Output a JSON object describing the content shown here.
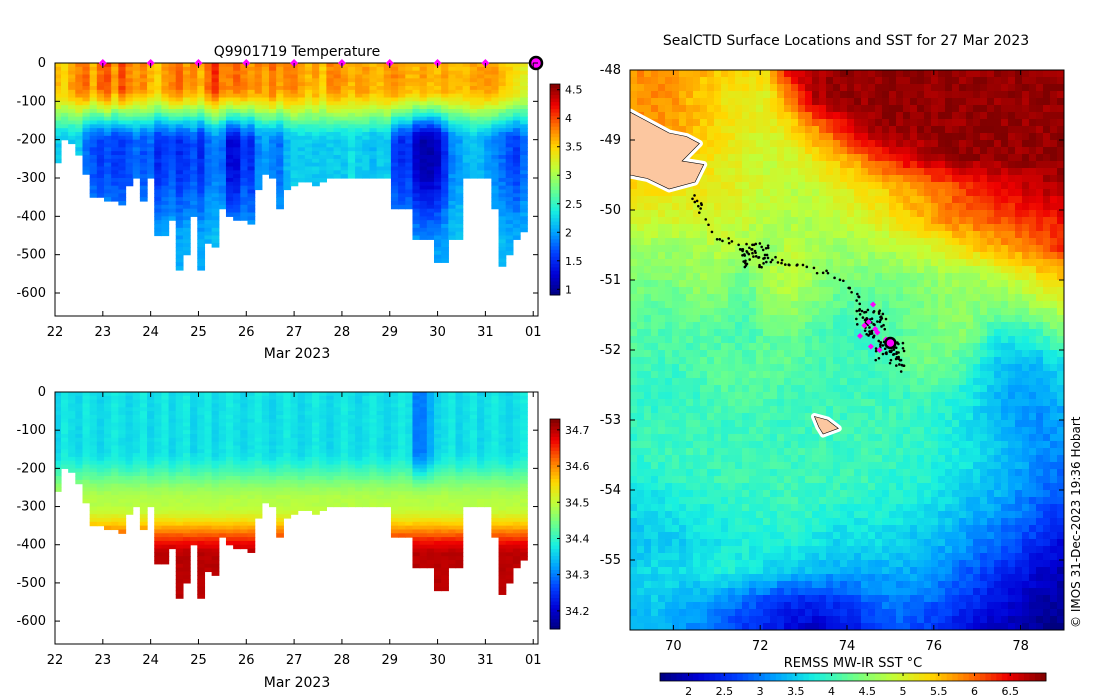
{
  "figure": {
    "credit": "© IMOS 31-Dec-2023 19:36 Hobart"
  },
  "chart_data": [
    {
      "type": "heatmap",
      "title": "Q9901719  Temperature",
      "xlabel": "Mar 2023",
      "ylabel": "",
      "x_ticks": [
        "22",
        "23",
        "24",
        "25",
        "26",
        "27",
        "28",
        "29",
        "30",
        "31",
        "01"
      ],
      "y_ticks": [
        0,
        -100,
        -200,
        -300,
        -400,
        -500,
        -600
      ],
      "xlim": [
        22,
        32.1
      ],
      "ylim": [
        -660,
        0
      ],
      "colorbar": {
        "ticks": [
          "1",
          "1.5",
          "2",
          "2.5",
          "3",
          "3.5",
          "4",
          "4.5"
        ],
        "range": [
          0.9,
          4.6
        ],
        "colors": [
          "#00007f",
          "#0000d6",
          "#0040ff",
          "#00a4ff",
          "#18f0e0",
          "#6bff8c",
          "#c0ff39",
          "#ffd800",
          "#ff7400",
          "#ef0000",
          "#7f0000"
        ]
      },
      "surfacing_markers_day": [
        23,
        24,
        25,
        26,
        27,
        28,
        29,
        30,
        31
      ],
      "profile_days": [
        22.05,
        22.2,
        22.35,
        22.5,
        22.65,
        22.8,
        22.95,
        23.1,
        23.25,
        23.4,
        23.55,
        23.7,
        23.85,
        24.0,
        24.15,
        24.3,
        24.45,
        24.6,
        24.75,
        24.9,
        25.05,
        25.2,
        25.35,
        25.5,
        25.65,
        25.8,
        25.95,
        26.1,
        26.25,
        26.4,
        26.55,
        26.7,
        26.85,
        27.0,
        27.15,
        27.3,
        27.45,
        27.6,
        27.75,
        27.9,
        28.05,
        28.2,
        28.35,
        28.5,
        28.65,
        28.8,
        28.95,
        29.1,
        29.25,
        29.4,
        29.55,
        29.7,
        29.85,
        30.0,
        30.15,
        30.3,
        30.45,
        30.6,
        30.75,
        30.9,
        31.05,
        31.2,
        31.35,
        31.5,
        31.65,
        31.8,
        31.95
      ],
      "profile_max_depth_m": [
        260,
        200,
        210,
        240,
        290,
        350,
        350,
        355,
        355,
        370,
        320,
        300,
        360,
        300,
        445,
        445,
        410,
        540,
        495,
        400,
        535,
        470,
        475,
        380,
        400,
        410,
        410,
        420,
        330,
        290,
        300,
        380,
        330,
        320,
        310,
        310,
        320,
        310,
        300,
        300,
        300,
        300,
        300,
        300,
        300,
        300,
        300,
        380,
        380,
        380,
        460,
        460,
        460,
        515,
        515,
        460,
        460,
        300,
        300,
        300,
        300,
        380,
        530,
        500,
        460,
        440,
        0
      ],
      "surface_temp_C": [
        3.6,
        3.5,
        3.7,
        3.8,
        3.9,
        3.6,
        3.9,
        4.0,
        3.7,
        4.0,
        3.8,
        3.7,
        3.8,
        3.6,
        3.5,
        3.7,
        3.8,
        3.9,
        3.7,
        3.8,
        3.6,
        3.9,
        4.1,
        3.8,
        3.8,
        3.9,
        3.8,
        3.7,
        3.8,
        3.7,
        3.9,
        3.7,
        3.8,
        3.8,
        3.7,
        3.6,
        3.7,
        3.5,
        3.8,
        3.8,
        3.7,
        3.6,
        3.7,
        3.7,
        3.6,
        3.6,
        3.7,
        3.8,
        3.7,
        3.6,
        3.6,
        3.7,
        3.6,
        3.6,
        3.7,
        3.6,
        3.6,
        3.6,
        3.7,
        3.7,
        3.7,
        3.7,
        3.6,
        3.5,
        3.4,
        3.3,
        3.3
      ],
      "deep_temp_C": [
        2.2,
        2.2,
        2.2,
        2.2,
        1.8,
        1.7,
        1.6,
        1.7,
        1.6,
        1.6,
        1.7,
        1.8,
        1.7,
        1.8,
        1.5,
        1.6,
        1.7,
        1.5,
        1.6,
        1.7,
        1.5,
        1.8,
        1.9,
        1.8,
        1.3,
        1.3,
        1.6,
        1.5,
        1.9,
        2.0,
        1.9,
        1.8,
        2.1,
        2.2,
        2.2,
        2.2,
        2.2,
        2.2,
        2.2,
        2.2,
        2.2,
        2.3,
        2.2,
        2.2,
        2.1,
        2.2,
        2.2,
        1.6,
        1.5,
        1.6,
        1.2,
        1.1,
        1.1,
        1.2,
        1.5,
        1.9,
        2.0,
        2.1,
        2.2,
        2.1,
        2.0,
        1.9,
        1.8,
        1.7,
        1.6,
        1.8,
        1.7
      ]
    },
    {
      "type": "heatmap",
      "title": "",
      "xlabel": "Mar 2023",
      "ylabel": "",
      "x_ticks": [
        "22",
        "23",
        "24",
        "25",
        "26",
        "27",
        "28",
        "29",
        "30",
        "31",
        "01"
      ],
      "y_ticks": [
        0,
        -100,
        -200,
        -300,
        -400,
        -500,
        -600
      ],
      "xlim": [
        22,
        32.1
      ],
      "ylim": [
        -660,
        0
      ],
      "colorbar": {
        "ticks": [
          "34.2",
          "34.3",
          "34.4",
          "34.5",
          "34.6",
          "34.7"
        ],
        "range": [
          34.15,
          34.73
        ],
        "colors": [
          "#00007f",
          "#0000d6",
          "#0040ff",
          "#00a4ff",
          "#18f0e0",
          "#6bff8c",
          "#c0ff39",
          "#ffd800",
          "#ff7400",
          "#ef0000",
          "#7f0000"
        ]
      },
      "profile_days_ref": "same as temperature panel",
      "surface_salinity_psu": [
        34.36,
        34.38,
        34.37,
        34.36,
        34.38,
        34.37,
        34.36,
        34.37,
        34.38,
        34.37,
        34.36,
        34.37,
        34.38,
        34.36,
        34.37,
        34.38,
        34.36,
        34.37,
        34.38,
        34.36,
        34.37,
        34.38,
        34.36,
        34.37,
        34.38,
        34.37,
        34.36,
        34.37,
        34.38,
        34.37,
        34.36,
        34.37,
        34.38,
        34.37,
        34.36,
        34.37,
        34.38,
        34.37,
        34.36,
        34.37,
        34.38,
        34.37,
        34.36,
        34.37,
        34.38,
        34.37,
        34.36,
        34.37,
        34.38,
        34.37,
        34.3,
        34.3,
        34.33,
        34.36,
        34.37,
        34.38,
        34.36,
        34.37,
        34.38,
        34.36,
        34.37,
        34.38,
        34.37,
        34.36,
        34.37,
        34.38,
        34.37
      ],
      "deep_salinity_psu": 34.7
    },
    {
      "type": "heatmap",
      "title": "SealCTD Surface Locations and SST for 27 Mar 2023",
      "xlabel": "",
      "ylabel": "",
      "x_ticks": [
        "70",
        "72",
        "74",
        "76",
        "78"
      ],
      "y_ticks": [
        "-48",
        "-49",
        "-50",
        "-51",
        "-52",
        "-53",
        "-54",
        "-55"
      ],
      "xlim": [
        69.0,
        79.0
      ],
      "ylim": [
        -56.0,
        -48.0
      ],
      "colorbar": {
        "label": "REMSS MW-IR SST °C",
        "ticks": [
          "2",
          "2.5",
          "3",
          "3.5",
          "4",
          "4.5",
          "5",
          "5.5",
          "6",
          "6.5"
        ],
        "range": [
          1.6,
          7.0
        ],
        "colors": [
          "#00007f",
          "#0000d6",
          "#0040ff",
          "#00a4ff",
          "#18f0e0",
          "#6bff8c",
          "#c0ff39",
          "#ffd800",
          "#ff7400",
          "#ef0000",
          "#7f0000"
        ]
      },
      "sst_field_C": [
        [
          5.8,
          5.8,
          5.7,
          5.6,
          5.4,
          5.3,
          5.3,
          6.6,
          6.8,
          6.9,
          6.9,
          6.9,
          6.9,
          6.9,
          6.9,
          6.9,
          6.9,
          6.9,
          6.9,
          6.9
        ],
        [
          5.7,
          5.8,
          5.7,
          5.5,
          5.3,
          5.2,
          5.1,
          5.8,
          6.7,
          6.9,
          6.9,
          6.9,
          6.9,
          6.9,
          6.9,
          6.9,
          6.9,
          6.9,
          6.9,
          6.9
        ],
        [
          5.9,
          5.8,
          5.7,
          5.5,
          5.3,
          5.1,
          5.0,
          5.3,
          5.7,
          6.2,
          6.7,
          6.9,
          6.9,
          6.9,
          6.9,
          6.9,
          6.9,
          6.9,
          6.9,
          6.9
        ],
        [
          5.6,
          5.5,
          5.5,
          5.4,
          5.2,
          5.0,
          4.9,
          5.0,
          5.2,
          5.5,
          5.8,
          6.2,
          6.5,
          6.7,
          6.9,
          6.9,
          6.9,
          6.9,
          6.9,
          6.9
        ],
        [
          5.3,
          5.3,
          5.2,
          5.2,
          5.1,
          5.0,
          4.9,
          4.8,
          4.9,
          5.1,
          5.2,
          5.4,
          5.6,
          5.8,
          6.0,
          6.3,
          6.4,
          6.6,
          6.7,
          6.8
        ],
        [
          5.0,
          5.0,
          5.0,
          5.0,
          5.0,
          4.9,
          4.8,
          4.7,
          4.7,
          4.8,
          5.0,
          5.2,
          5.4,
          5.6,
          5.9,
          6.0,
          6.1,
          6.2,
          6.3,
          6.4
        ],
        [
          4.6,
          4.6,
          4.6,
          4.7,
          4.8,
          4.7,
          4.5,
          4.8,
          4.7,
          4.6,
          4.7,
          4.7,
          4.8,
          5.0,
          5.2,
          5.4,
          5.6,
          5.8,
          6.0,
          6.3
        ],
        [
          4.4,
          4.4,
          4.5,
          4.6,
          4.5,
          4.3,
          4.7,
          4.9,
          4.6,
          4.4,
          4.4,
          4.4,
          4.5,
          4.5,
          4.6,
          4.7,
          4.8,
          5.0,
          5.3,
          5.5
        ],
        [
          4.3,
          4.2,
          4.2,
          4.4,
          4.4,
          4.1,
          4.5,
          4.6,
          4.4,
          4.2,
          4.1,
          4.2,
          4.3,
          4.4,
          4.5,
          4.5,
          4.4,
          4.5,
          4.7,
          4.9
        ],
        [
          4.2,
          4.1,
          4.1,
          4.1,
          4.1,
          4.0,
          4.2,
          4.3,
          4.1,
          4.0,
          4.0,
          4.1,
          4.2,
          4.3,
          4.5,
          4.4,
          3.8,
          3.8,
          4.0,
          4.3
        ],
        [
          4.1,
          4.0,
          4.0,
          4.1,
          4.2,
          4.2,
          4.2,
          4.2,
          4.1,
          4.0,
          4.0,
          4.0,
          4.2,
          4.4,
          4.3,
          3.9,
          3.5,
          3.3,
          3.4,
          3.7
        ],
        [
          4.0,
          3.9,
          3.9,
          4.0,
          4.1,
          4.1,
          4.1,
          4.0,
          4.0,
          4.0,
          4.0,
          4.0,
          4.0,
          4.0,
          3.9,
          3.7,
          3.4,
          3.2,
          3.2,
          3.4
        ],
        [
          4.0,
          4.0,
          4.0,
          4.0,
          4.0,
          4.0,
          4.0,
          4.0,
          4.0,
          4.0,
          4.0,
          4.0,
          4.0,
          3.9,
          3.8,
          3.6,
          3.4,
          3.2,
          3.1,
          3.2
        ],
        [
          3.9,
          4.0,
          4.0,
          4.0,
          4.0,
          4.0,
          4.0,
          4.0,
          4.0,
          4.0,
          4.0,
          4.0,
          3.9,
          3.9,
          3.8,
          3.7,
          3.5,
          3.3,
          3.1,
          3.0
        ],
        [
          3.8,
          3.8,
          3.9,
          3.9,
          4.0,
          4.0,
          4.0,
          4.0,
          4.0,
          4.0,
          4.0,
          3.9,
          3.9,
          3.8,
          3.7,
          3.5,
          3.4,
          3.2,
          3.0,
          2.8
        ],
        [
          3.6,
          3.6,
          3.7,
          3.8,
          3.8,
          3.9,
          3.9,
          4.0,
          3.9,
          3.8,
          3.8,
          3.8,
          3.7,
          3.6,
          3.5,
          3.3,
          3.2,
          3.0,
          2.8,
          2.6
        ],
        [
          3.4,
          3.5,
          3.5,
          3.6,
          3.7,
          3.8,
          3.8,
          3.8,
          3.7,
          3.6,
          3.6,
          3.6,
          3.5,
          3.4,
          3.3,
          3.1,
          2.9,
          2.7,
          2.5,
          2.2
        ],
        [
          3.5,
          3.6,
          3.6,
          3.7,
          3.8,
          3.7,
          3.6,
          3.5,
          3.4,
          3.3,
          3.3,
          3.3,
          3.3,
          3.2,
          3.0,
          2.8,
          2.6,
          2.4,
          2.1,
          1.9
        ],
        [
          3.5,
          3.5,
          3.4,
          3.3,
          3.1,
          2.9,
          2.7,
          2.5,
          2.5,
          2.6,
          2.8,
          3.0,
          3.0,
          2.9,
          2.7,
          2.5,
          2.3,
          2.1,
          1.9,
          1.8
        ],
        [
          3.3,
          3.3,
          3.2,
          3.0,
          2.8,
          2.6,
          2.4,
          2.2,
          2.0,
          2.1,
          2.4,
          2.7,
          2.8,
          2.6,
          2.4,
          2.2,
          2.0,
          1.9,
          1.7,
          1.7
        ]
      ],
      "land": [
        {
          "name": "kerguelen-islands",
          "outline_lonlat": [
            [
              69.0,
              -48.6
            ],
            [
              69.6,
              -48.8
            ],
            [
              69.9,
              -48.9
            ],
            [
              70.3,
              -48.95
            ],
            [
              70.6,
              -49.05
            ],
            [
              70.2,
              -49.3
            ],
            [
              70.7,
              -49.35
            ],
            [
              70.5,
              -49.6
            ],
            [
              69.9,
              -49.7
            ],
            [
              69.4,
              -49.55
            ],
            [
              69.0,
              -49.5
            ]
          ]
        },
        {
          "name": "heard-island",
          "outline_lonlat": [
            [
              73.25,
              -52.95
            ],
            [
              73.55,
              -53.0
            ],
            [
              73.8,
              -53.12
            ],
            [
              73.45,
              -53.2
            ],
            [
              73.35,
              -53.1
            ]
          ]
        }
      ],
      "track_lonlat": [
        [
          70.5,
          -49.8
        ],
        [
          70.6,
          -49.9
        ],
        [
          70.65,
          -50.0
        ],
        [
          71.0,
          -50.4
        ],
        [
          71.3,
          -50.45
        ],
        [
          71.6,
          -50.55
        ],
        [
          71.8,
          -50.6
        ],
        [
          72.0,
          -50.65
        ],
        [
          72.3,
          -50.7
        ],
        [
          72.5,
          -50.75
        ],
        [
          72.8,
          -50.8
        ],
        [
          73.2,
          -50.85
        ],
        [
          73.6,
          -50.9
        ],
        [
          74.0,
          -51.1
        ],
        [
          74.2,
          -51.2
        ],
        [
          74.3,
          -51.35
        ],
        [
          74.35,
          -51.5
        ],
        [
          74.45,
          -51.6
        ],
        [
          74.5,
          -51.7
        ],
        [
          74.55,
          -51.8
        ],
        [
          74.7,
          -51.85
        ],
        [
          74.85,
          -51.9
        ],
        [
          75.0,
          -51.95
        ],
        [
          75.15,
          -52.05
        ],
        [
          75.25,
          -52.2
        ],
        [
          75.3,
          -52.3
        ]
      ],
      "track_cluster_centers_lonlat": [
        [
          71.9,
          -50.65
        ],
        [
          74.55,
          -51.6
        ],
        [
          75.0,
          -52.05
        ]
      ],
      "surfacing_markers_lonlat": [
        [
          74.6,
          -51.35
        ],
        [
          74.5,
          -51.6
        ],
        [
          74.3,
          -51.8
        ],
        [
          74.7,
          -51.75
        ],
        [
          74.55,
          -51.95
        ],
        [
          74.9,
          -51.85
        ],
        [
          74.75,
          -52.0
        ],
        [
          74.4,
          -51.65
        ],
        [
          74.65,
          -51.7
        ]
      ],
      "current_position_lonlat": [
        75.0,
        -51.9
      ]
    }
  ]
}
